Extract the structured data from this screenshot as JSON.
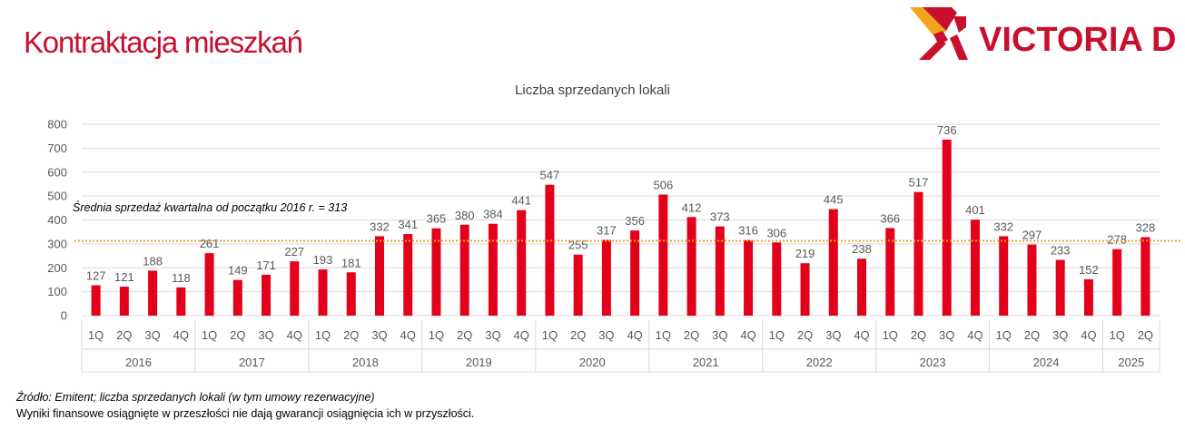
{
  "page": {
    "title": "Kontraktacja mieszkań",
    "logo_text": "VICTORIA D",
    "source_note": "Źródło: Emitent; liczba sprzedanych lokali (w tym umowy rezerwacyjne)",
    "disclaimer": "Wyniki finansowe osiągnięte w przeszłości nie dają gwarancji osiągnięcia ich w przyszłości."
  },
  "colors": {
    "brand_red": "#c8102e",
    "bar": "#e3001b",
    "average_line": "#f0a030",
    "logo_orange": "#f3a41b",
    "axis_text": "#595959"
  },
  "chart_data": {
    "type": "bar",
    "title": "Liczba sprzedanych lokali",
    "categories": [
      "1Q",
      "2Q",
      "3Q",
      "4Q",
      "1Q",
      "2Q",
      "3Q",
      "4Q",
      "1Q",
      "2Q",
      "3Q",
      "4Q",
      "1Q",
      "2Q",
      "3Q",
      "4Q",
      "1Q",
      "2Q",
      "3Q",
      "4Q",
      "1Q",
      "2Q",
      "3Q",
      "4Q",
      "1Q",
      "2Q",
      "3Q",
      "4Q",
      "1Q",
      "2Q",
      "3Q",
      "4Q",
      "1Q",
      "2Q",
      "3Q",
      "4Q",
      "1Q",
      "2Q"
    ],
    "years": [
      {
        "label": "2016",
        "count": 4
      },
      {
        "label": "2017",
        "count": 4
      },
      {
        "label": "2018",
        "count": 4
      },
      {
        "label": "2019",
        "count": 4
      },
      {
        "label": "2020",
        "count": 4
      },
      {
        "label": "2021",
        "count": 4
      },
      {
        "label": "2022",
        "count": 4
      },
      {
        "label": "2023",
        "count": 4
      },
      {
        "label": "2024",
        "count": 4
      },
      {
        "label": "2025",
        "count": 2
      }
    ],
    "values": [
      127,
      121,
      188,
      118,
      261,
      149,
      171,
      227,
      193,
      181,
      332,
      341,
      365,
      380,
      384,
      441,
      547,
      255,
      317,
      356,
      506,
      412,
      373,
      316,
      306,
      219,
      445,
      238,
      366,
      517,
      736,
      401,
      332,
      297,
      233,
      152,
      278,
      328
    ],
    "ylim": [
      0,
      800
    ],
    "yticks": [
      0,
      100,
      200,
      300,
      400,
      500,
      600,
      700,
      800
    ],
    "average_value": 313,
    "average_label": "Średnia sprzedaż kwartalna od początku 2016 r. = 313",
    "grid": true,
    "legend": "none"
  }
}
